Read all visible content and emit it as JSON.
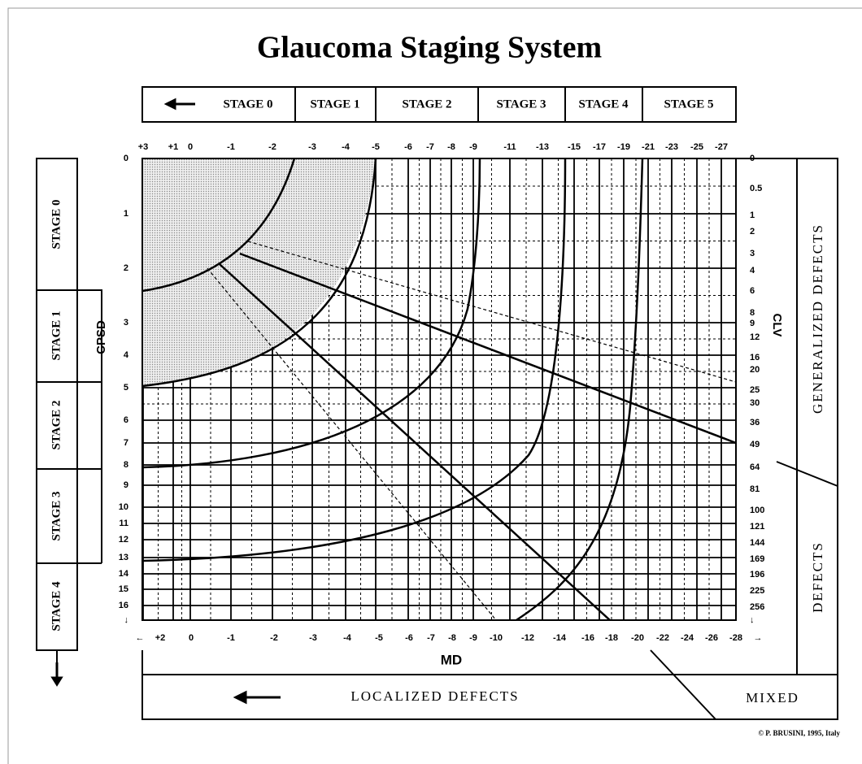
{
  "title": "Glaucoma Staging System",
  "top_stages": [
    "STAGE 0",
    "STAGE 1",
    "STAGE 2",
    "STAGE 3",
    "STAGE 4",
    "STAGE 5"
  ],
  "left_stages": [
    "STAGE 0",
    "STAGE 1",
    "STAGE 2",
    "STAGE 3",
    "STAGE 4"
  ],
  "top_ticks": [
    "+3",
    "+1",
    "0",
    "-1",
    "-2",
    "-3",
    "-4",
    "-5",
    "-6",
    "-7",
    "-8",
    "-9",
    "-11",
    "-13",
    "-15",
    "-17",
    "-19",
    "-21",
    "-23",
    "-25",
    "-27"
  ],
  "bottom_ticks": [
    "←",
    "+2",
    "0",
    "-1",
    "-2",
    "-3",
    "-4",
    "-5",
    "-6",
    "-7",
    "-8",
    "-9",
    "-10",
    "-12",
    "-14",
    "-16",
    "-18",
    "-20",
    "-22",
    "-24",
    "-26",
    "-28",
    "→"
  ],
  "left_ticks": [
    "0",
    "1",
    "2",
    "3",
    "4",
    "5",
    "6",
    "7",
    "8",
    "9",
    "10",
    "11",
    "12",
    "13",
    "14",
    "15",
    "16",
    "↓"
  ],
  "right_ticks": [
    "0",
    "0.5",
    "1",
    "2",
    "3",
    "4",
    "6",
    "8",
    "9",
    "12",
    "16",
    "20",
    "25",
    "30",
    "36",
    "49",
    "64",
    "81",
    "100",
    "121",
    "144",
    "169",
    "196",
    "225",
    "256",
    "↓"
  ],
  "y_label": "CPSD",
  "x_label": "MD",
  "y2_label": "CLV",
  "generalized": "GENERALIZED DEFECTS",
  "defects": "DEFECTS",
  "localized": "LOCALIZED DEFECTS",
  "mixed": "MIXED",
  "copyright": "© P. BRUSINI, 1995, Italy"
}
